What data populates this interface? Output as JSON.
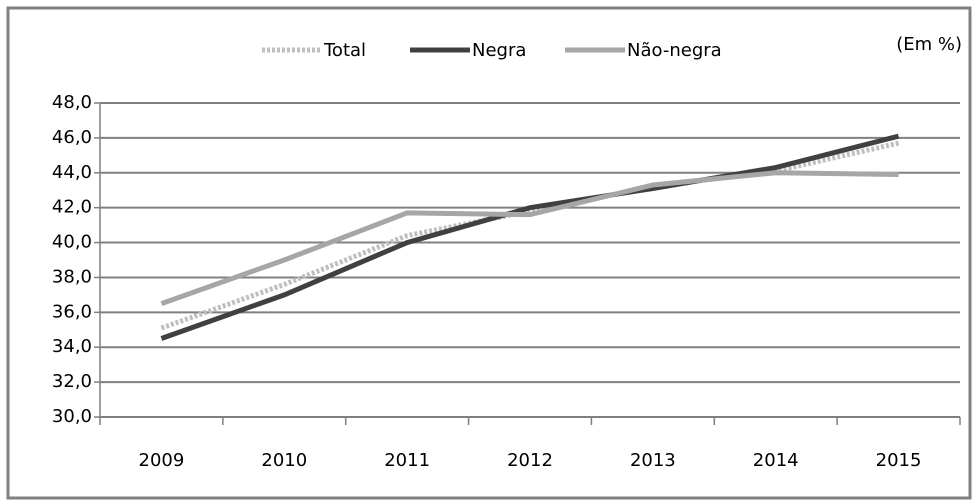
{
  "chart_data": {
    "type": "line",
    "annotation": "(Em %)",
    "categories": [
      "2009",
      "2010",
      "2011",
      "2012",
      "2013",
      "2014",
      "2015"
    ],
    "series": [
      {
        "name": "Total",
        "color": "#bfbfbf",
        "dash": "dotted",
        "values": [
          35.1,
          37.6,
          40.4,
          41.8,
          43.2,
          44.1,
          45.7
        ]
      },
      {
        "name": "Negra",
        "color": "#404040",
        "dash": "solid",
        "values": [
          34.5,
          37.0,
          40.0,
          42.0,
          43.1,
          44.3,
          46.1
        ]
      },
      {
        "name": "Não-negra",
        "color": "#a6a6a6",
        "dash": "solid",
        "values": [
          36.5,
          39.0,
          41.7,
          41.6,
          43.3,
          44.0,
          43.9
        ]
      }
    ],
    "ylim": [
      30,
      48
    ],
    "yticks": [
      {
        "value": 30,
        "label": "30,0"
      },
      {
        "value": 32,
        "label": "32,0"
      },
      {
        "value": 34,
        "label": "34,0"
      },
      {
        "value": 36,
        "label": "36,0"
      },
      {
        "value": 38,
        "label": "38,0"
      },
      {
        "value": 40,
        "label": "40,0"
      },
      {
        "value": 42,
        "label": "42,0"
      },
      {
        "value": 44,
        "label": "44,0"
      },
      {
        "value": 46,
        "label": "46,0"
      },
      {
        "value": 48,
        "label": "48,0"
      }
    ],
    "grid": true
  }
}
